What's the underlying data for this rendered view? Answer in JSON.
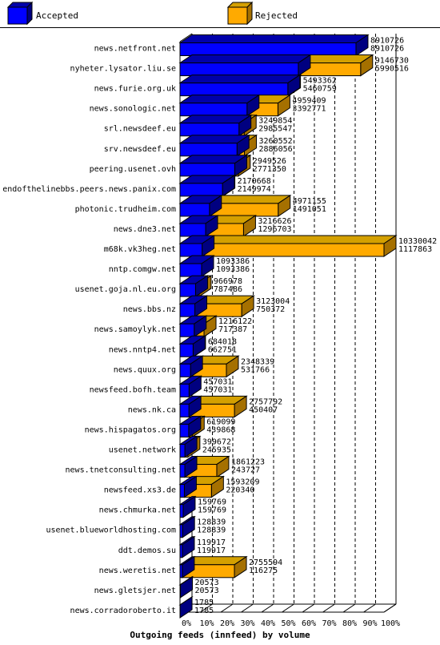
{
  "chart_data": {
    "type": "bar",
    "orientation": "horizontal",
    "stacked": false,
    "style": "3d",
    "title": "Outgoing feeds (innfeed) by volume",
    "xlim": [
      0,
      100
    ],
    "x_ticks": [
      "0%",
      "10%",
      "20%",
      "30%",
      "40%",
      "50%",
      "60%",
      "70%",
      "80%",
      "90%",
      "100%"
    ],
    "legend_position": "top",
    "series": [
      {
        "name": "Accepted",
        "color": "#0000ff"
      },
      {
        "name": "Rejected",
        "color": "#ffaa00"
      }
    ],
    "categories": [
      "news.netfront.net",
      "nyheter.lysator.liu.se",
      "news.furie.org.uk",
      "news.sonologic.net",
      "srl.newsdeef.eu",
      "srv.newsdeef.eu",
      "peering.usenet.ovh",
      "endofthelinebbs.peers.news.panix.com",
      "photonic.trudheim.com",
      "news.dne3.net",
      "m68k.vk3heg.net",
      "nntp.comgw.net",
      "usenet.goja.nl.eu.org",
      "news.bbs.nz",
      "news.samoylyk.net",
      "news.nntp4.net",
      "news.quux.org",
      "newsfeed.bofh.team",
      "news.nk.ca",
      "news.hispagatos.org",
      "usenet.network",
      "news.tnetconsulting.net",
      "newsfeed.xs3.de",
      "news.chmurka.net",
      "usenet.blueworldhosting.com",
      "ddt.demos.su",
      "news.weretis.net",
      "news.gletsjer.net",
      "news.corradoroberto.it"
    ],
    "offered_labels": [
      "8910726",
      "9146730",
      "5493362",
      "4959409",
      "3249854",
      "3260552",
      "2949526",
      "2170668",
      "4971155",
      "3216626",
      "10330042",
      "1093386",
      "966978",
      "3123004",
      "1216122",
      "684018",
      "2348339",
      "457031",
      "2757792",
      "619099",
      "399672",
      "1861223",
      "1593209",
      "159769",
      "128839",
      "119917",
      "2755594",
      "20573",
      "1785"
    ],
    "accepted_labels": [
      "8910726",
      "5990516",
      "5460759",
      "3392771",
      "2985547",
      "2886056",
      "2771350",
      "2149974",
      "1491051",
      "1296703",
      "1117863",
      "1093386",
      "787486",
      "750372",
      "717387",
      "662751",
      "531766",
      "457031",
      "450407",
      "439868",
      "245935",
      "243727",
      "220340",
      "159769",
      "128839",
      "119917",
      "116275",
      "20573",
      "1785"
    ],
    "offered": [
      8910726,
      9146730,
      5493362,
      4959409,
      3249854,
      3260552,
      2949526,
      2170668,
      4971155,
      3216626,
      10330042,
      1093386,
      966978,
      3123004,
      1216122,
      684018,
      2348339,
      457031,
      2757792,
      619099,
      399672,
      1861223,
      1593209,
      159769,
      128839,
      119917,
      2755594,
      20573,
      1785
    ],
    "accepted": [
      8910726,
      5990516,
      5460759,
      3392771,
      2985547,
      2886056,
      2771350,
      2149974,
      1491051,
      1296703,
      1117863,
      1093386,
      787486,
      750372,
      717387,
      662751,
      531766,
      457031,
      450407,
      439868,
      245935,
      243727,
      220340,
      159769,
      128839,
      119917,
      116275,
      20573,
      1785
    ]
  }
}
